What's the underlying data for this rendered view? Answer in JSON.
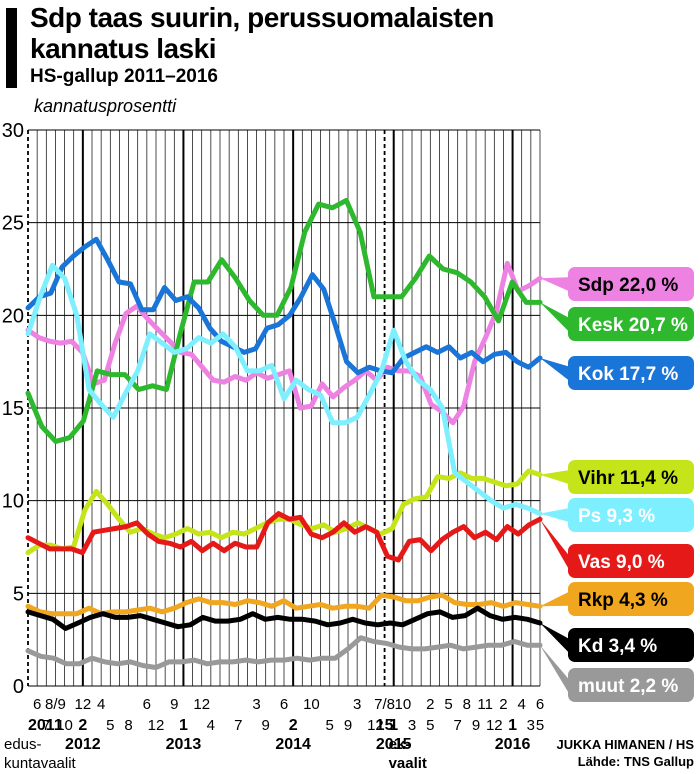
{
  "title": "Sdp taas suurin, perussuomalaisten kannatus laski",
  "subtitle": "HS-gallup 2011–2016",
  "credits": {
    "author": "JUKKA HIMANEN / HS",
    "source": "Lähde: TNS Gallup"
  },
  "chart_data": {
    "type": "line",
    "ylabel": "kannatusprosentti",
    "ylim": [
      0,
      30
    ],
    "yticks": [
      0,
      5,
      10,
      15,
      20,
      25,
      30
    ],
    "grid": true,
    "n_points": 57,
    "election_markers": [
      {
        "index": 0,
        "label": "2011",
        "sublabel": "edus-\nkuntavaalit"
      },
      {
        "index": 39,
        "label": "15",
        "sublabel": "ek-\nvaalit"
      }
    ],
    "x_tick_labels": [
      {
        "i": 1,
        "row": 0,
        "t": "6"
      },
      {
        "i": 3,
        "row": 0,
        "t": "8/9"
      },
      {
        "i": 6,
        "row": 0,
        "t": "12"
      },
      {
        "i": 8,
        "row": 0,
        "t": "4"
      },
      {
        "i": 13,
        "row": 0,
        "t": "6"
      },
      {
        "i": 16,
        "row": 0,
        "t": "9"
      },
      {
        "i": 19,
        "row": 0,
        "t": "12"
      },
      {
        "i": 25,
        "row": 0,
        "t": "3"
      },
      {
        "i": 28,
        "row": 0,
        "t": "6"
      },
      {
        "i": 31,
        "row": 0,
        "t": "10"
      },
      {
        "i": 36,
        "row": 0,
        "t": "3"
      },
      {
        "i": 39,
        "row": 0,
        "t": "7/8"
      },
      {
        "i": 41,
        "row": 0,
        "t": "10"
      },
      {
        "i": 44,
        "row": 0,
        "t": "2"
      },
      {
        "i": 46,
        "row": 0,
        "t": "5"
      },
      {
        "i": 48,
        "row": 0,
        "t": "8"
      },
      {
        "i": 50,
        "row": 0,
        "t": "11"
      },
      {
        "i": 52,
        "row": 0,
        "t": "2"
      },
      {
        "i": 54,
        "row": 0,
        "t": "4"
      },
      {
        "i": 56,
        "row": 0,
        "t": "6"
      },
      {
        "i": 0,
        "row": 1,
        "t": "2011",
        "b": true
      },
      {
        "i": 2,
        "row": 1,
        "t": "7"
      },
      {
        "i": 4,
        "row": 1,
        "t": "10"
      },
      {
        "i": 6,
        "row": 1,
        "t": "2",
        "b": true
      },
      {
        "i": 9,
        "row": 1,
        "t": "5"
      },
      {
        "i": 11,
        "row": 1,
        "t": "8"
      },
      {
        "i": 14,
        "row": 1,
        "t": "12"
      },
      {
        "i": 17,
        "row": 1,
        "t": "1",
        "b": true
      },
      {
        "i": 20,
        "row": 1,
        "t": "4"
      },
      {
        "i": 23,
        "row": 1,
        "t": "7"
      },
      {
        "i": 26,
        "row": 1,
        "t": "9"
      },
      {
        "i": 29,
        "row": 1,
        "t": "2",
        "b": true
      },
      {
        "i": 33,
        "row": 1,
        "t": "5"
      },
      {
        "i": 35,
        "row": 1,
        "t": "9"
      },
      {
        "i": 38,
        "row": 1,
        "t": "12"
      },
      {
        "i": 40,
        "row": 1,
        "t": "1",
        "b": true
      },
      {
        "i": 42,
        "row": 1,
        "t": "3"
      },
      {
        "i": 44,
        "row": 1,
        "t": "5"
      },
      {
        "i": 47,
        "row": 1,
        "t": "7"
      },
      {
        "i": 49,
        "row": 1,
        "t": "9"
      },
      {
        "i": 51,
        "row": 1,
        "t": "12"
      },
      {
        "i": 53,
        "row": 1,
        "t": "1",
        "b": true
      },
      {
        "i": 55,
        "row": 1,
        "t": "3"
      },
      {
        "i": 56,
        "row": 1,
        "t": "5"
      },
      {
        "i": 6,
        "row": 2,
        "t": "2012",
        "b": true
      },
      {
        "i": 17,
        "row": 2,
        "t": "2013",
        "b": true
      },
      {
        "i": 29,
        "row": 2,
        "t": "2014",
        "b": true
      },
      {
        "i": 40,
        "row": 2,
        "t": "2015",
        "b": true
      },
      {
        "i": 53,
        "row": 2,
        "t": "2016",
        "b": true
      }
    ],
    "series": [
      {
        "name": "Sdp",
        "label": "Sdp 22,0 %",
        "color": "#ee82e3",
        "values": [
          19.2,
          18.8,
          18.6,
          18.5,
          18.6,
          18.0,
          16.3,
          16.5,
          18.5,
          20.1,
          20.5,
          19.8,
          19.2,
          18.6,
          18.0,
          17.9,
          17.2,
          16.5,
          16.4,
          16.7,
          16.5,
          16.9,
          16.6,
          16.8,
          17.0,
          15.0,
          15.1,
          16.3,
          15.6,
          16.1,
          16.5,
          17.0,
          16.5,
          17.2,
          17.0,
          17.0,
          16.7,
          15.2,
          14.8,
          14.2,
          15.1,
          17.5,
          18.8,
          20.2,
          22.8,
          21.3,
          21.6,
          22.0
        ]
      },
      {
        "name": "Kesk",
        "label": "Kesk 20,7 %",
        "color": "#2db82d",
        "values": [
          15.8,
          14.0,
          13.2,
          13.4,
          14.3,
          17.0,
          16.8,
          16.8,
          16.0,
          16.2,
          16.0,
          19.0,
          21.8,
          21.8,
          23.0,
          22.0,
          20.8,
          20.0,
          20.0,
          21.5,
          24.5,
          26.0,
          25.8,
          26.2,
          24.5,
          21.0,
          21.0,
          21.0,
          22.0,
          23.2,
          22.5,
          22.3,
          21.8,
          21.0,
          19.7,
          21.8,
          20.7,
          20.7
        ]
      },
      {
        "name": "Kok",
        "label": "Kok 17,7 %",
        "color": "#1a75d8",
        "values": [
          20.4,
          21.0,
          21.2,
          22.6,
          23.2,
          23.7,
          24.1,
          23.0,
          21.8,
          21.7,
          20.3,
          20.3,
          21.5,
          20.8,
          21.0,
          20.4,
          19.3,
          18.6,
          18.3,
          18.0,
          18.2,
          19.3,
          19.5,
          20.0,
          21.0,
          22.2,
          21.4,
          19.5,
          17.5,
          16.9,
          17.2,
          17.0,
          16.9,
          17.7,
          18.0,
          18.3,
          18.0,
          18.3,
          17.7,
          18.0,
          17.5,
          17.9,
          18.0,
          17.5,
          17.2,
          17.7
        ]
      },
      {
        "name": "Vihr",
        "label": "Vihr 11,4 %",
        "color": "#c6e41a",
        "values": [
          7.2,
          7.6,
          7.6,
          7.4,
          7.5,
          9.5,
          10.5,
          9.8,
          9.0,
          8.3,
          8.5,
          8.2,
          8.0,
          8.2,
          8.5,
          8.2,
          8.3,
          8.0,
          8.3,
          8.2,
          8.5,
          8.8,
          9.0,
          9.0,
          8.7,
          8.5,
          8.7,
          8.3,
          8.5,
          8.8,
          8.5,
          8.2,
          8.5,
          9.8,
          10.1,
          10.2,
          11.3,
          11.2,
          11.5,
          11.2,
          11.2,
          11.0,
          10.8,
          10.9,
          11.6,
          11.4
        ]
      },
      {
        "name": "Ps",
        "label": "Ps 9,3 %",
        "color": "#7defff",
        "values": [
          19.0,
          21.0,
          22.7,
          22.0,
          20.0,
          16.0,
          15.2,
          14.5,
          15.8,
          17.0,
          19.0,
          18.5,
          18.0,
          18.2,
          18.8,
          18.5,
          19.0,
          18.3,
          17.0,
          17.0,
          17.3,
          15.5,
          16.5,
          16.0,
          15.7,
          14.2,
          14.2,
          14.5,
          15.7,
          17.0,
          19.2,
          17.5,
          16.5,
          16.0,
          15.0,
          11.5,
          11.0,
          10.5,
          10.0,
          9.6,
          9.8,
          9.6,
          9.3
        ]
      },
      {
        "name": "Vas",
        "label": "Vas 9,0 %",
        "color": "#e61919",
        "values": [
          8.0,
          7.7,
          7.4,
          7.4,
          7.4,
          7.2,
          8.3,
          8.4,
          8.5,
          8.6,
          8.8,
          8.2,
          7.8,
          7.7,
          7.5,
          7.8,
          7.3,
          7.7,
          7.3,
          7.7,
          7.5,
          7.5,
          8.8,
          9.3,
          9.0,
          9.1,
          8.2,
          8.0,
          8.3,
          8.8,
          8.3,
          8.6,
          8.3,
          7.0,
          6.8,
          7.8,
          7.9,
          7.3,
          7.9,
          8.3,
          8.6,
          8.0,
          8.3,
          7.9,
          8.6,
          8.2,
          8.7,
          9.0
        ]
      },
      {
        "name": "Rkp",
        "label": "Rkp 4,3 %",
        "color": "#f0a61e",
        "values": [
          4.3,
          4.0,
          3.9,
          3.9,
          3.9,
          4.2,
          3.9,
          4.0,
          4.0,
          4.1,
          4.2,
          4.0,
          4.2,
          4.5,
          4.7,
          4.5,
          4.5,
          4.4,
          4.6,
          4.5,
          4.3,
          4.6,
          4.2,
          4.3,
          4.4,
          4.2,
          4.3,
          4.3,
          4.2,
          4.9,
          4.8,
          4.6,
          4.6,
          4.8,
          4.9,
          4.5,
          4.4,
          4.4,
          4.5,
          4.3,
          4.5,
          4.4,
          4.3
        ]
      },
      {
        "name": "Kd",
        "label": "Kd 3,4 %",
        "color": "#000000",
        "values": [
          4.0,
          3.8,
          3.6,
          3.1,
          3.4,
          3.7,
          3.9,
          3.7,
          3.7,
          3.8,
          3.6,
          3.4,
          3.2,
          3.3,
          3.7,
          3.5,
          3.5,
          3.6,
          3.9,
          3.6,
          3.7,
          3.6,
          3.6,
          3.5,
          3.3,
          3.4,
          3.6,
          3.4,
          3.3,
          3.4,
          3.3,
          3.6,
          3.9,
          4.0,
          3.7,
          3.8,
          4.2,
          3.8,
          3.6,
          3.7,
          3.6,
          3.4
        ]
      },
      {
        "name": "muut",
        "label": "muut 2,2 %",
        "color": "#999999",
        "values": [
          1.9,
          1.6,
          1.5,
          1.2,
          1.2,
          1.5,
          1.3,
          1.2,
          1.3,
          1.1,
          1.0,
          1.3,
          1.3,
          1.4,
          1.2,
          1.3,
          1.3,
          1.4,
          1.3,
          1.4,
          1.4,
          1.5,
          1.4,
          1.5,
          1.5,
          2.0,
          2.6,
          2.4,
          2.3,
          2.1,
          2.0,
          2.0,
          2.1,
          2.2,
          2.0,
          2.1,
          2.2,
          2.2,
          2.4,
          2.2,
          2.2
        ]
      }
    ]
  }
}
